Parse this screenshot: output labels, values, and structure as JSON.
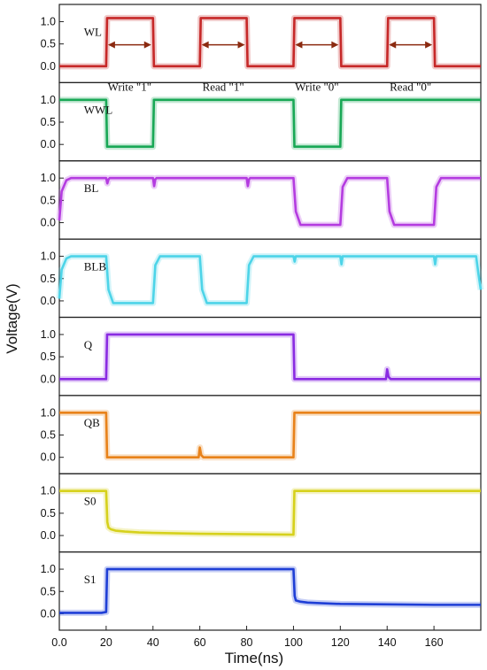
{
  "chart_data": {
    "type": "line",
    "xlabel": "Time(ns)",
    "ylabel": "Voltage(V)",
    "xlim": [
      0,
      180
    ],
    "x_ticks": [
      "0.0",
      "20",
      "40",
      "60",
      "80",
      "100",
      "120",
      "140",
      "160"
    ],
    "x_tick_values": [
      0,
      20,
      40,
      60,
      80,
      100,
      120,
      140,
      160
    ],
    "y_ticks": [
      "0.0",
      "0.5",
      "1.0"
    ],
    "y_tick_values": [
      0,
      0.5,
      1.0
    ],
    "grid": false,
    "series": [
      {
        "name": "WL",
        "color": "#c62828",
        "x": [
          0,
          20,
          20.4,
          40,
          40.4,
          60,
          60.4,
          80,
          80.4,
          100,
          100.4,
          120,
          120.4,
          140,
          140.4,
          160,
          160.4,
          180
        ],
        "y": [
          0,
          0,
          1.08,
          1.08,
          0,
          0,
          1.08,
          1.08,
          0,
          0,
          1.08,
          1.08,
          0,
          0,
          1.08,
          1.08,
          0,
          0
        ]
      },
      {
        "name": "WWL",
        "color": "#19a856",
        "x": [
          0,
          20,
          20.4,
          40,
          40.4,
          100,
          100.4,
          120,
          120.4,
          180
        ],
        "y": [
          1.0,
          1.0,
          -0.05,
          -0.05,
          1.0,
          1.0,
          -0.05,
          -0.05,
          1.0,
          1.0
        ]
      },
      {
        "name": "BL",
        "color": "#b43ce0",
        "x": [
          0,
          1,
          3,
          5,
          8,
          20,
          20.5,
          21,
          21.5,
          40,
          40.5,
          41,
          41.5,
          80,
          80.5,
          81,
          81.5,
          100,
          101,
          103,
          120,
          121,
          123,
          140,
          141,
          143,
          160,
          161,
          163,
          180
        ],
        "y": [
          0.05,
          0.7,
          0.95,
          1.0,
          1.0,
          1.0,
          0.88,
          0.97,
          1.0,
          1.0,
          0.82,
          0.97,
          1.0,
          1.0,
          0.82,
          0.97,
          1.0,
          1.0,
          0.25,
          -0.05,
          -0.05,
          0.8,
          1.0,
          1.0,
          0.25,
          -0.05,
          -0.05,
          0.8,
          1.0,
          1.0
        ]
      },
      {
        "name": "BLB",
        "color": "#4dd4e8",
        "x": [
          0,
          1,
          3,
          5,
          8,
          20,
          21,
          23,
          40,
          41,
          43,
          60,
          61,
          63,
          80,
          81,
          83,
          100,
          100.5,
          101,
          120,
          120.5,
          121,
          160,
          160.5,
          161,
          178,
          179,
          180
        ],
        "y": [
          0.05,
          0.7,
          0.95,
          1.0,
          1.0,
          1.0,
          0.25,
          -0.05,
          -0.05,
          0.8,
          1.0,
          1.0,
          0.25,
          -0.05,
          -0.05,
          0.8,
          1.0,
          1.0,
          0.88,
          1.0,
          1.0,
          0.82,
          1.0,
          1.0,
          0.82,
          1.0,
          1.0,
          0.6,
          0.25
        ]
      },
      {
        "name": "Q",
        "color": "#8a2be2",
        "x": [
          0,
          20,
          20.4,
          100,
          100.4,
          139.5,
          140,
          140.6,
          141.5,
          180
        ],
        "y": [
          0,
          0,
          1.0,
          1.0,
          0,
          0,
          0.22,
          0.05,
          0,
          0
        ]
      },
      {
        "name": "QB",
        "color": "#e8821a",
        "x": [
          0,
          20,
          20.4,
          59.5,
          60,
          60.6,
          61.5,
          100,
          100.4,
          180
        ],
        "y": [
          1.0,
          1.0,
          0,
          0,
          0.22,
          0.05,
          0,
          0,
          1.0,
          1.0
        ]
      },
      {
        "name": "S0",
        "color": "#d6d11c",
        "x": [
          0,
          20,
          20.5,
          21,
          22,
          24,
          28,
          34,
          40,
          50,
          60,
          70,
          80,
          90,
          100,
          100.4,
          180
        ],
        "y": [
          1.0,
          1.0,
          0.3,
          0.18,
          0.14,
          0.11,
          0.09,
          0.07,
          0.06,
          0.05,
          0.04,
          0.035,
          0.03,
          0.025,
          0.02,
          1.0,
          1.0
        ]
      },
      {
        "name": "S1",
        "color": "#1f3fd6",
        "x": [
          0,
          18,
          20,
          20.4,
          100,
          100.5,
          101,
          103,
          106,
          110,
          120,
          140,
          160,
          180
        ],
        "y": [
          0.02,
          0.02,
          0.04,
          1.0,
          1.0,
          0.4,
          0.3,
          0.27,
          0.25,
          0.24,
          0.22,
          0.21,
          0.2,
          0.2
        ]
      }
    ],
    "annotations": [
      {
        "text": "Write \"1\"",
        "from": 20,
        "to": 40
      },
      {
        "text": "Read \"1\"",
        "from": 60,
        "to": 80
      },
      {
        "text": "Write \"0\"",
        "from": 100,
        "to": 120
      },
      {
        "text": "Read \"0\"",
        "from": 140,
        "to": 160
      }
    ],
    "annotation_arrow_color": "#8b2a10"
  }
}
